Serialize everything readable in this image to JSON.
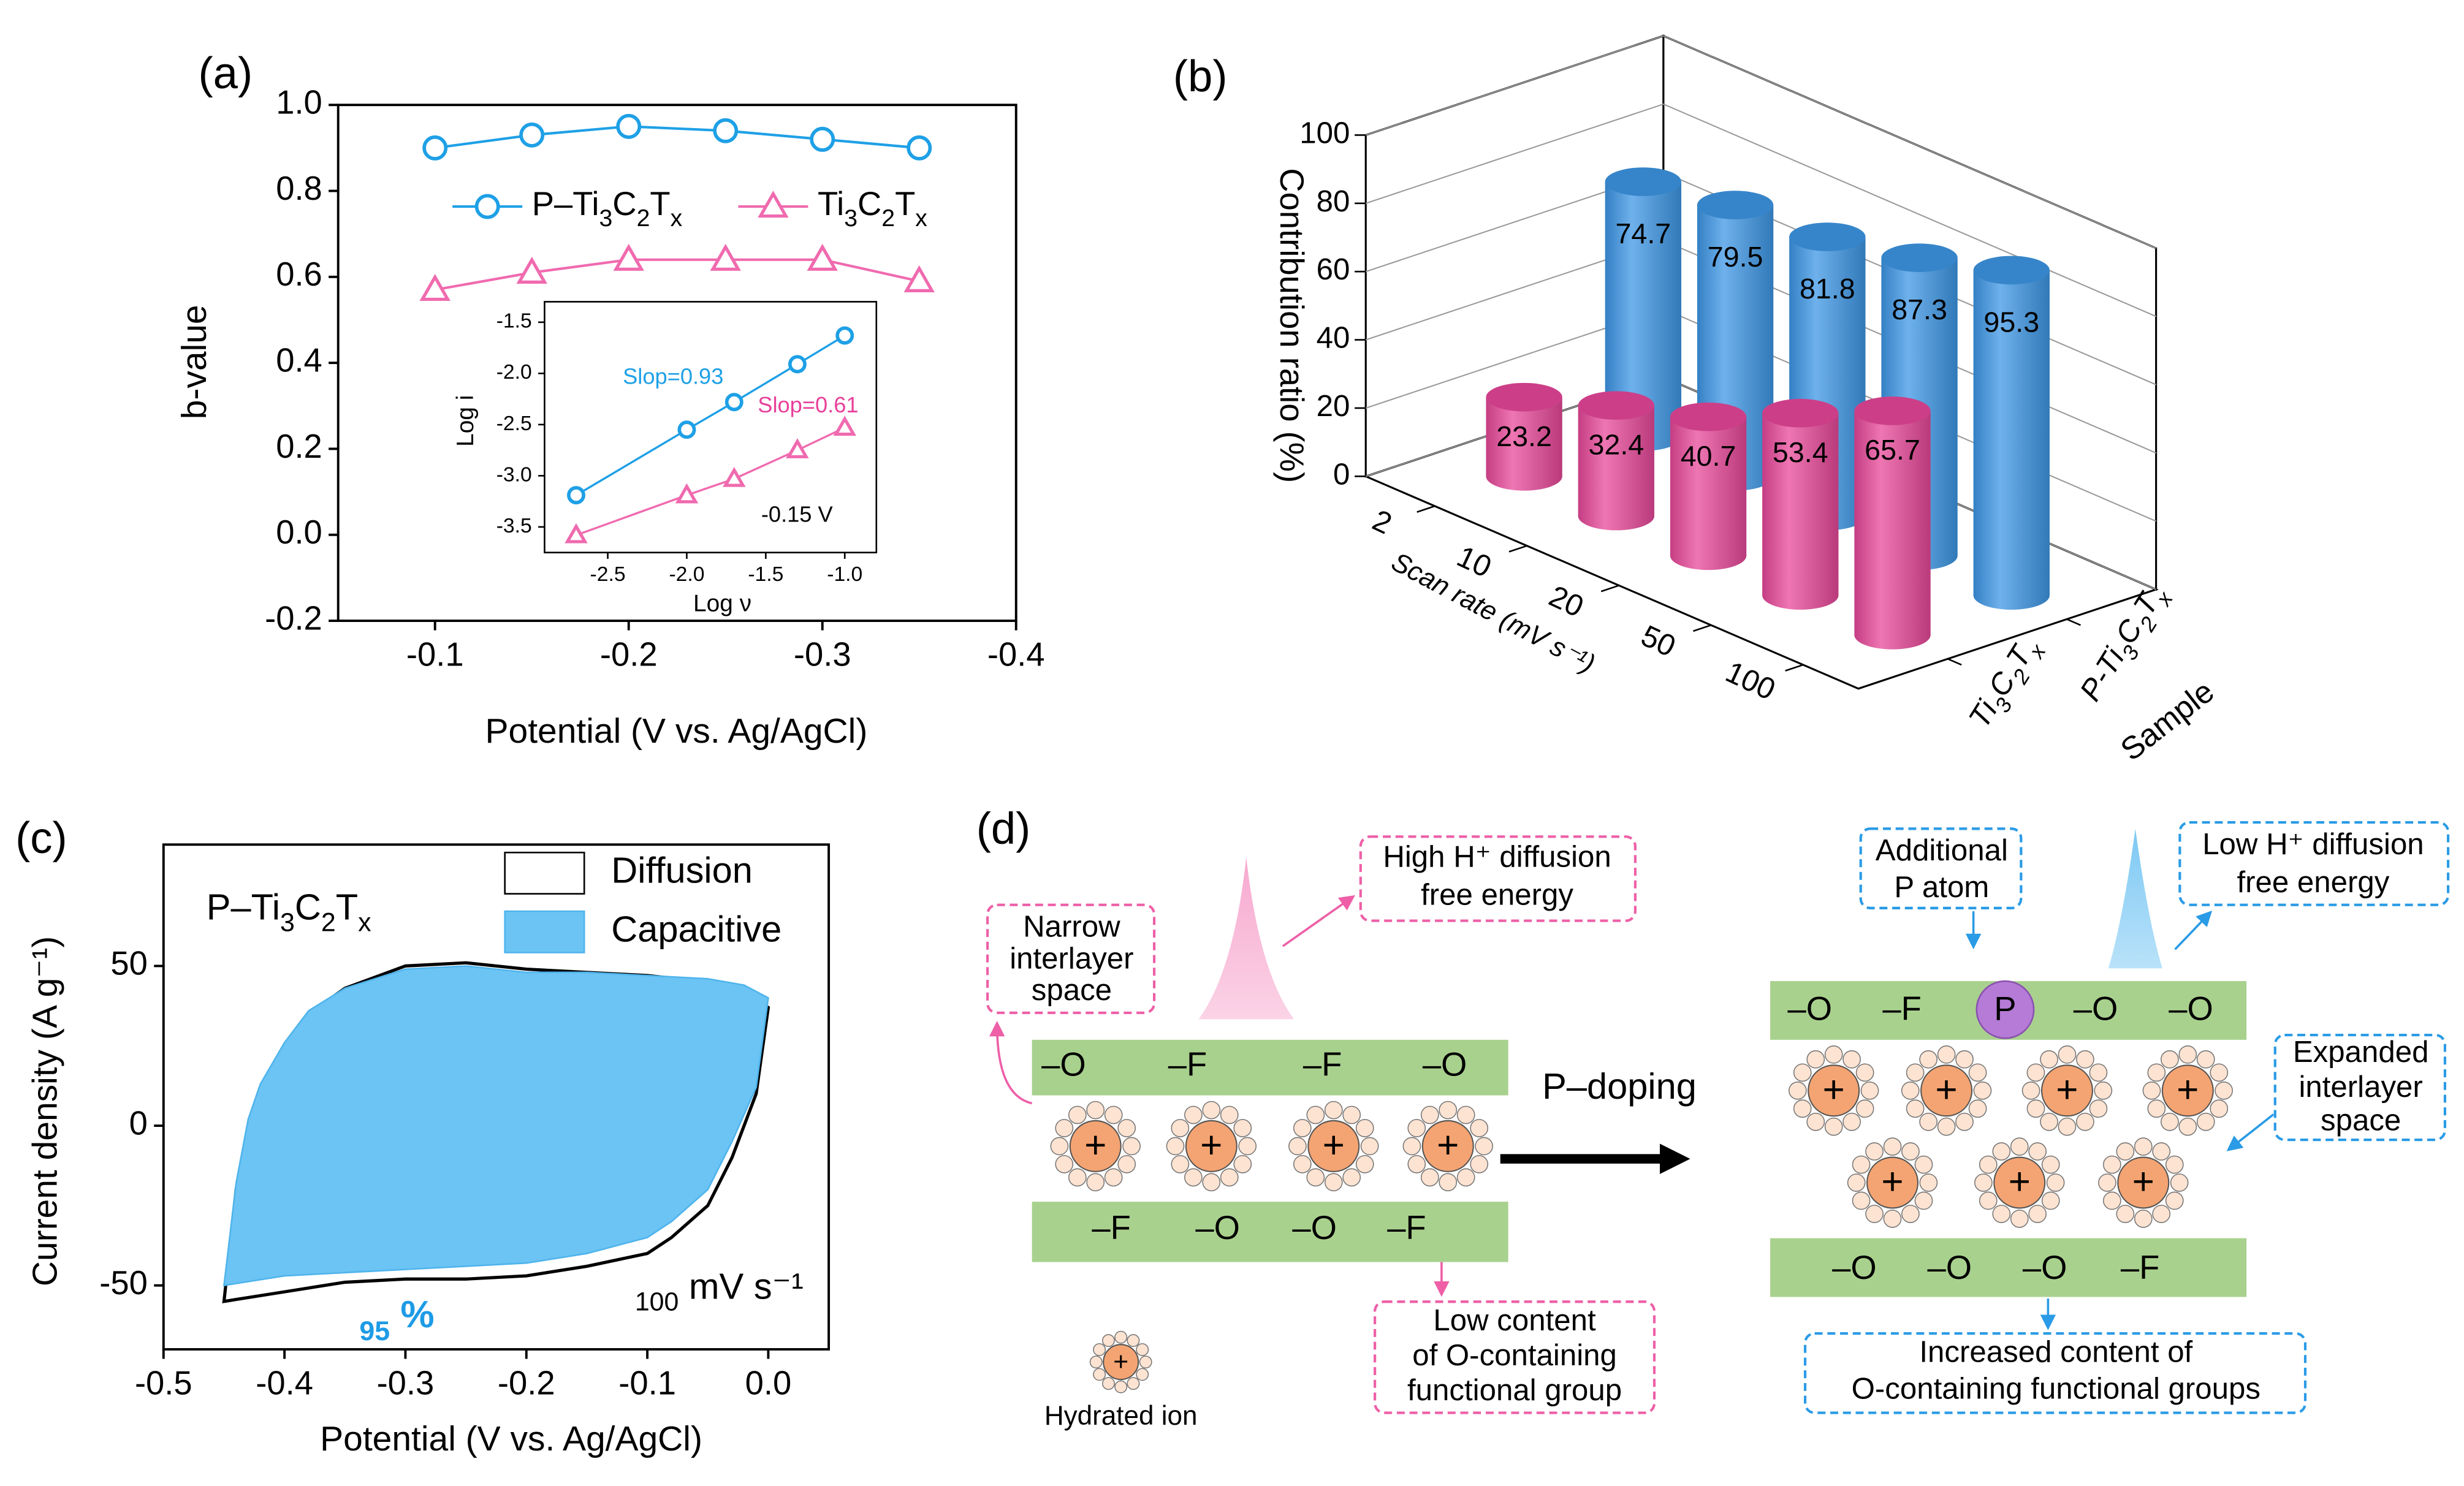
{
  "chart_data": [
    {
      "type": "line",
      "label": "(a)",
      "xlabel": "Potential (V vs. Ag/AgCl)",
      "ylabel": "b-value",
      "x": [
        -0.1,
        -0.15,
        -0.2,
        -0.25,
        -0.3,
        -0.35
      ],
      "xlim": [
        -0.05,
        -0.4
      ],
      "xticks": [
        -0.1,
        -0.2,
        -0.3,
        -0.4
      ],
      "ylim": [
        -0.2,
        1
      ],
      "yticks": [
        -0.2,
        {
          "value": 0,
          "label": "0.0"
        },
        0.2,
        0.4,
        0.6,
        0.8,
        {
          "value": 1,
          "label": "1.0"
        }
      ],
      "series": [
        {
          "name": "P–Ti3C2Tx",
          "color": "#1ea0e6",
          "marker": "circle",
          "values": [
            0.9,
            0.93,
            0.95,
            0.94,
            0.92,
            0.9
          ]
        },
        {
          "name": "Ti3C2Tx",
          "color": "#f06aaf",
          "marker": "triangle",
          "values": [
            0.57,
            0.61,
            0.64,
            0.64,
            0.64,
            0.59
          ]
        }
      ],
      "inset": {
        "type": "line",
        "xlabel": "Log ν",
        "ylabel": "Log i",
        "x": [
          -2.7,
          -2,
          -1.7,
          -1.3,
          -1
        ],
        "xlim": [
          -2.9,
          -0.8
        ],
        "xticks": [
          -2.5,
          {
            "value": -2,
            "label": "-2.0"
          },
          -1.5,
          {
            "value": -1,
            "label": "-1.0"
          }
        ],
        "ylim": [
          -3.75,
          -1.3
        ],
        "yticks": [
          -3.5,
          {
            "value": -3,
            "label": "-3.0"
          },
          -2.5,
          {
            "value": -2,
            "label": "-2.0"
          },
          -1.5
        ],
        "series": [
          {
            "color": "#1ea0e6",
            "marker": "circle",
            "values": [
              -3.19,
              -2.55,
              -2.28,
              -1.91,
              -1.63
            ]
          },
          {
            "color": "#f06aaf",
            "marker": "triangle",
            "values": [
              -3.58,
              -3.19,
              -3.03,
              -2.75,
              -2.53
            ]
          }
        ],
        "annotations": [
          {
            "text": "Slop=0.93",
            "color": "#1ea0e6"
          },
          {
            "text": "Slop=0.61",
            "color": "#e8409a"
          },
          {
            "text": "-0.15 V",
            "color": "#000000"
          }
        ]
      }
    },
    {
      "type": "bar3d",
      "label": "(b)",
      "zlabel": "Contribution ratio (%)",
      "xlabel": "Scan rate (mV s⁻¹)",
      "ylabel": "Sample",
      "categories": [
        "2",
        "10",
        "20",
        "50",
        "100"
      ],
      "zlim": [
        0,
        100
      ],
      "zticks": [
        0,
        20,
        40,
        60,
        80,
        100
      ],
      "series": [
        {
          "name": "Ti3C2Tx",
          "color": "#e8489a",
          "values": [
            23.2,
            32.4,
            40.7,
            53.4,
            65.7
          ]
        },
        {
          "name": "P-Ti3C2Tx",
          "color": "#3d97e6",
          "values": [
            74.7,
            79.5,
            81.8,
            87.3,
            95.3
          ]
        }
      ]
    },
    {
      "type": "area",
      "label": "(c)",
      "xlabel": "Potential (V vs. Ag/AgCl)",
      "ylabel": "Current density (A g⁻¹)",
      "x": [
        -0.45,
        -0.44,
        -0.43,
        -0.42,
        -0.4,
        -0.38,
        -0.35,
        -0.3,
        -0.25,
        -0.2,
        -0.15,
        -0.1,
        -0.05,
        -0.02,
        0,
        -0.01,
        -0.03,
        -0.05,
        -0.08,
        -0.1,
        -0.15,
        -0.2,
        -0.25,
        -0.3,
        -0.35,
        -0.4
      ],
      "xlim": [
        -0.5,
        0.05
      ],
      "xticks": [
        -0.5,
        -0.4,
        -0.3,
        -0.2,
        -0.1,
        {
          "value": 0,
          "label": "0.0"
        }
      ],
      "ylim": [
        -70,
        88
      ],
      "yticks": [
        -50,
        0,
        50
      ],
      "series": [
        {
          "name": "Diffusion",
          "color": "#ffffff",
          "values": [
            -55,
            -20,
            0,
            12,
            25,
            35,
            43,
            50,
            51,
            49,
            48,
            47,
            45,
            42,
            37,
            10,
            -10,
            -25,
            -35,
            -40,
            -44,
            -47,
            -48,
            -48,
            -49,
            -52
          ]
        },
        {
          "name": "Capacitive",
          "color": "#6cc4f4",
          "values": [
            -50,
            -18,
            2,
            13,
            26,
            36,
            43,
            49,
            50,
            48,
            48,
            47,
            46,
            44,
            40,
            12,
            -5,
            -20,
            -30,
            -35,
            -40,
            -43,
            -44,
            -45,
            -46,
            -47
          ]
        }
      ],
      "annotations": [
        {
          "text": "P–Ti3C2Tx",
          "color": "#000000"
        },
        {
          "text": "95 %",
          "color": "#1e9be6"
        },
        {
          "text": "100 mV s⁻¹",
          "color": "#000000"
        }
      ]
    }
  ],
  "diagram": {
    "label": "(d)",
    "ion_sign": "+",
    "arrow_label": "P–doping",
    "legend": "Hydrated ion",
    "p_atom": "P",
    "left_top": [
      "–O",
      "–F",
      "–F",
      "–O"
    ],
    "left_bottom": [
      "–F",
      "–O",
      "–O",
      "–F"
    ],
    "right_top": [
      "–O",
      "–F",
      "–O",
      "–O"
    ],
    "right_bottom": [
      "–O",
      "–O",
      "–O",
      "–F"
    ],
    "callouts": [
      {
        "lines": [
          "Narrow",
          "interlayer",
          "space"
        ]
      },
      {
        "lines": [
          "High H⁺ diffusion",
          "free energy"
        ]
      },
      {
        "lines": [
          "Low content",
          "of O-containing",
          "functional group"
        ]
      },
      {
        "lines": [
          "Additional",
          "P atom"
        ]
      },
      {
        "lines": [
          "Low H⁺ diffusion",
          "free energy"
        ]
      },
      {
        "lines": [
          "Expanded",
          "interlayer",
          "space"
        ]
      },
      {
        "lines": [
          "Increased content of",
          "O-containing functional groups"
        ]
      }
    ]
  }
}
